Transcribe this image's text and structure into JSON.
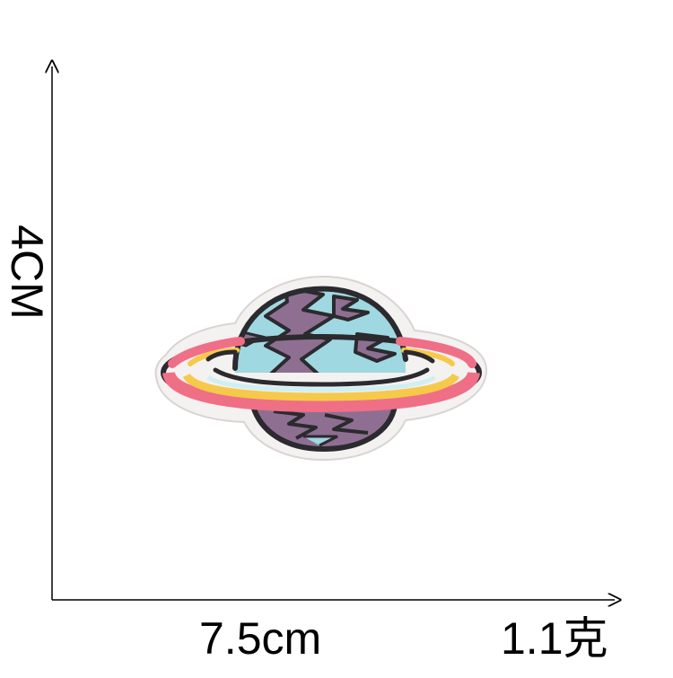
{
  "dimensions": {
    "height": "4CM",
    "width": "7.5cm",
    "weight": "1.1克"
  },
  "colors": {
    "background": "#ffffff",
    "axis": "#000000",
    "patch_border": "#f4f1f1",
    "outline": "#2b2a2e",
    "planet_blue": "#9fd8e0",
    "planet_purple": "#8e6f92",
    "ring_pink": "#ef6f86",
    "ring_yellow": "#f6c94a",
    "ring_light_blue": "#cfeff2"
  },
  "icons": {
    "product": "planet-embroidered-patch-icon"
  }
}
